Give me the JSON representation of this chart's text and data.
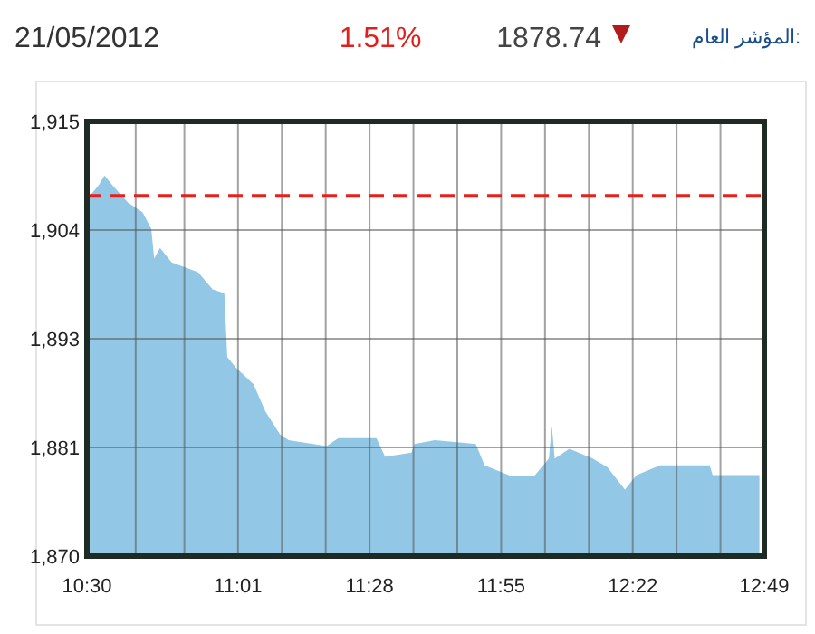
{
  "chart_data": {
    "type": "area",
    "title": "المؤشر العام:",
    "annotations": [
      "21/05/2012",
      "1.51%",
      "1878.74"
    ],
    "x": [
      10.5,
      10.51,
      10.54,
      10.56,
      10.59,
      10.64,
      10.69,
      10.72,
      10.73,
      10.75,
      10.79,
      10.88,
      10.93,
      10.97,
      10.98,
      11.01,
      11.07,
      11.11,
      11.16,
      11.19,
      11.32,
      11.36,
      11.49,
      11.52,
      11.61,
      11.62,
      11.69,
      11.83,
      11.86,
      11.95,
      12.03,
      12.08,
      12.09,
      12.1,
      12.15,
      12.23,
      12.28,
      12.34,
      12.38,
      12.46,
      12.63,
      12.64,
      12.8
    ],
    "series": [
      {
        "color": "#92c8e6",
        "values": [
          1907.3,
          1907.3,
          1908.4,
          1909.4,
          1908.3,
          1906.6,
          1905.6,
          1903.9,
          1900.8,
          1901.9,
          1900.4,
          1899.4,
          1897.6,
          1897.2,
          1890.6,
          1889.5,
          1887.8,
          1885.0,
          1882.6,
          1882.0,
          1881.4,
          1882.2,
          1882.2,
          1880.3,
          1880.7,
          1881.6,
          1882.0,
          1881.6,
          1879.4,
          1878.3,
          1878.3,
          1880.1,
          1883.5,
          1880.1,
          1881.1,
          1880.1,
          1879.2,
          1876.9,
          1878.4,
          1879.4,
          1879.4,
          1878.4,
          1878.4
        ]
      }
    ],
    "xlim": [
      10.5,
      12.8167
    ],
    "xticks": [
      {
        "value": 10.5,
        "label": "10:30"
      },
      {
        "value": 10.6667,
        "label": null
      },
      {
        "value": 10.8333,
        "label": null
      },
      {
        "value": 11.0167,
        "label": "11:01"
      },
      {
        "value": 11.1667,
        "label": null
      },
      {
        "value": 11.3167,
        "label": null
      },
      {
        "value": 11.4667,
        "label": "11:28"
      },
      {
        "value": 11.6167,
        "label": null
      },
      {
        "value": 11.7667,
        "label": null
      },
      {
        "value": 11.9167,
        "label": "11:55"
      },
      {
        "value": 12.0667,
        "label": null
      },
      {
        "value": 12.2167,
        "label": null
      },
      {
        "value": 12.3667,
        "label": "12:22"
      },
      {
        "value": 12.5167,
        "label": null
      },
      {
        "value": 12.6667,
        "label": null
      },
      {
        "value": 12.8167,
        "label": "12:49"
      }
    ],
    "ylim": [
      1870,
      1915
    ],
    "yticks": [
      {
        "value": 1870,
        "label": "1,870"
      },
      {
        "value": 1881.25,
        "label": "1,881"
      },
      {
        "value": 1892.5,
        "label": "1,893"
      },
      {
        "value": 1903.75,
        "label": "1,904"
      },
      {
        "value": 1915,
        "label": "1,915"
      }
    ],
    "grid": true,
    "ref_lines": [
      {
        "axis": "y",
        "value": 1907.3,
        "color": "#e8201c",
        "line_style": "dashed"
      }
    ]
  }
}
